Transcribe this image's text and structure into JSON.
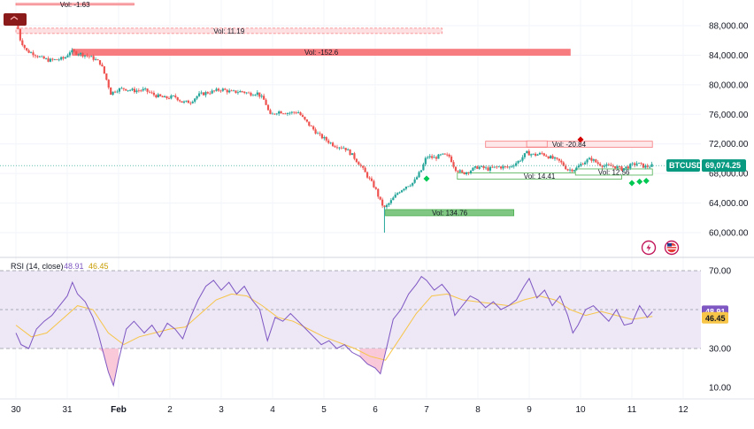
{
  "symbol_badge": "BTCUSD",
  "price_badge": "69,074.25",
  "price_badge_value": 69074.25,
  "colors": {
    "up": "#26a69a",
    "down": "#ef5350",
    "badge": "#089981",
    "rsi_line": "#7e57c2",
    "rsi_ma": "#f7c548",
    "rsi_band": "#ede7f6",
    "vol_neg": "#f77c80",
    "vol_pos": "#4caf50",
    "marker_up": "#00c853",
    "marker_down": "#d50000"
  },
  "price_axis": {
    "ticks": [
      {
        "value": 88000,
        "label": "88,000.00"
      },
      {
        "value": 84000,
        "label": "84,000.00"
      },
      {
        "value": 80000,
        "label": "80,000.00"
      },
      {
        "value": 76000,
        "label": "76,000.00"
      },
      {
        "value": 72000,
        "label": "72,000.00"
      },
      {
        "value": 68000,
        "label": "68,000.00"
      },
      {
        "value": 64000,
        "label": "64,000.00"
      },
      {
        "value": 60000,
        "label": "60,000.00"
      }
    ]
  },
  "rsi_axis": {
    "ticks": [
      {
        "value": 70,
        "label": "70.00"
      },
      {
        "value": 30,
        "label": "30.00"
      },
      {
        "value": 10,
        "label": "10.00"
      }
    ]
  },
  "time_axis": {
    "ticks": [
      {
        "day": 0,
        "label": "30"
      },
      {
        "day": 1,
        "label": "31"
      },
      {
        "day": 2,
        "label": "Feb"
      },
      {
        "day": 3,
        "label": "2"
      },
      {
        "day": 4,
        "label": "3"
      },
      {
        "day": 5,
        "label": "4"
      },
      {
        "day": 6,
        "label": "5"
      },
      {
        "day": 7,
        "label": "6"
      },
      {
        "day": 8,
        "label": "7"
      },
      {
        "day": 9,
        "label": "8"
      },
      {
        "day": 10,
        "label": "9"
      },
      {
        "day": 11,
        "label": "10"
      },
      {
        "day": 12,
        "label": "11"
      },
      {
        "day": 13,
        "label": "12"
      }
    ]
  },
  "rsi_panel": {
    "title": "RSI (14, close)",
    "rsi_value": "48.91",
    "ma_value": "46.45",
    "rsi_value_num": 48.91,
    "ma_value_num": 46.45
  },
  "volume_profile": [
    {
      "label": "Vol: -1.63",
      "price": 90900,
      "day_start": 0.0,
      "day_end": 2.3,
      "type": "neg"
    },
    {
      "label": "Vol: 11.19",
      "price": 87300,
      "day_start": 0.0,
      "day_end": 8.3,
      "type": "neg"
    },
    {
      "label": "Vol: -152.6",
      "price": 84400,
      "day_start": 1.1,
      "day_end": 10.8,
      "type": "neg"
    },
    {
      "label": "Vol: -20.84",
      "price": 71950,
      "day_start": 9.15,
      "day_end": 12.4,
      "type": "neg"
    },
    {
      "label": "Vol: 14.41",
      "price": 67650,
      "day_start": 8.6,
      "day_end": 11.8,
      "type": "pos"
    },
    {
      "label": "Vol: 12.56",
      "price": 68200,
      "day_start": 10.9,
      "day_end": 12.4,
      "type": "pos"
    },
    {
      "label": "Vol: 134.76",
      "price": 62700,
      "day_start": 7.2,
      "day_end": 9.7,
      "type": "pos"
    }
  ],
  "volume_profile_extra": [
    {
      "price": 72000,
      "day_start": 9.95,
      "day_end": 10.35
    }
  ],
  "session_high_marker": {
    "label": "",
    "price": 89000
  },
  "chart_data": [
    {
      "type": "candlestick",
      "title": "BTCUSD",
      "x_unit": "days (0 = Jan 30)",
      "ylim": [
        58500,
        90500
      ],
      "close_path": [
        [
          0.0,
          89000
        ],
        [
          0.08,
          86200
        ],
        [
          0.2,
          84600
        ],
        [
          0.35,
          84200
        ],
        [
          0.5,
          83600
        ],
        [
          0.65,
          83300
        ],
        [
          0.8,
          83400
        ],
        [
          0.95,
          83600
        ],
        [
          1.05,
          84500
        ],
        [
          1.2,
          84300
        ],
        [
          1.35,
          84000
        ],
        [
          1.5,
          83600
        ],
        [
          1.65,
          82900
        ],
        [
          1.75,
          81000
        ],
        [
          1.85,
          78800
        ],
        [
          1.95,
          79300
        ],
        [
          2.1,
          79500
        ],
        [
          2.3,
          79200
        ],
        [
          2.5,
          79300
        ],
        [
          2.7,
          78600
        ],
        [
          2.9,
          78200
        ],
        [
          3.1,
          78400
        ],
        [
          3.25,
          77600
        ],
        [
          3.4,
          77700
        ],
        [
          3.55,
          78600
        ],
        [
          3.7,
          78900
        ],
        [
          3.85,
          79100
        ],
        [
          4.0,
          79400
        ],
        [
          4.2,
          79000
        ],
        [
          4.4,
          79100
        ],
        [
          4.55,
          78800
        ],
        [
          4.7,
          78900
        ],
        [
          4.85,
          77800
        ],
        [
          4.95,
          75800
        ],
        [
          5.1,
          76400
        ],
        [
          5.3,
          76200
        ],
        [
          5.5,
          76300
        ],
        [
          5.6,
          75400
        ],
        [
          5.75,
          74300
        ],
        [
          5.9,
          73200
        ],
        [
          6.05,
          72500
        ],
        [
          6.2,
          71800
        ],
        [
          6.4,
          71500
        ],
        [
          6.55,
          70500
        ],
        [
          6.7,
          69200
        ],
        [
          6.85,
          67600
        ],
        [
          7.0,
          66000
        ],
        [
          7.1,
          64200
        ],
        [
          7.18,
          63300
        ],
        [
          7.3,
          64200
        ],
        [
          7.45,
          65500
        ],
        [
          7.6,
          66300
        ],
        [
          7.75,
          66800
        ],
        [
          7.9,
          68500
        ],
        [
          8.0,
          70300
        ],
        [
          8.15,
          70100
        ],
        [
          8.3,
          70500
        ],
        [
          8.45,
          70300
        ],
        [
          8.55,
          68700
        ],
        [
          8.7,
          68000
        ],
        [
          8.85,
          68400
        ],
        [
          9.0,
          68900
        ],
        [
          9.2,
          68600
        ],
        [
          9.4,
          68900
        ],
        [
          9.6,
          68800
        ],
        [
          9.8,
          69700
        ],
        [
          9.95,
          70800
        ],
        [
          10.1,
          70500
        ],
        [
          10.25,
          70700
        ],
        [
          10.4,
          70200
        ],
        [
          10.6,
          69600
        ],
        [
          10.75,
          68500
        ],
        [
          10.9,
          68600
        ],
        [
          11.05,
          69500
        ],
        [
          11.2,
          70000
        ],
        [
          11.35,
          69300
        ],
        [
          11.5,
          69000
        ],
        [
          11.65,
          69000
        ],
        [
          11.8,
          68600
        ],
        [
          11.95,
          69000
        ],
        [
          12.1,
          69400
        ],
        [
          12.25,
          68900
        ],
        [
          12.4,
          69074
        ]
      ],
      "markers": [
        {
          "day": 8.0,
          "price": 67300,
          "kind": "buy"
        },
        {
          "day": 11.0,
          "price": 72600,
          "kind": "sell"
        },
        {
          "day": 12.0,
          "price": 66700,
          "kind": "buy"
        },
        {
          "day": 12.15,
          "price": 66900,
          "kind": "buy"
        },
        {
          "day": 12.28,
          "price": 67000,
          "kind": "buy"
        }
      ]
    },
    {
      "type": "line",
      "title": "RSI (14, close)",
      "ylim": [
        0,
        75
      ],
      "series": [
        {
          "name": "RSI",
          "points": [
            [
              0.0,
              38
            ],
            [
              0.1,
              32
            ],
            [
              0.25,
              30
            ],
            [
              0.4,
              40
            ],
            [
              0.55,
              44
            ],
            [
              0.7,
              47
            ],
            [
              0.85,
              52
            ],
            [
              1.0,
              57
            ],
            [
              1.1,
              64
            ],
            [
              1.2,
              58
            ],
            [
              1.35,
              54
            ],
            [
              1.5,
              46
            ],
            [
              1.6,
              38
            ],
            [
              1.7,
              28
            ],
            [
              1.8,
              18
            ],
            [
              1.9,
              11
            ],
            [
              2.0,
              24
            ],
            [
              2.15,
              40
            ],
            [
              2.3,
              44
            ],
            [
              2.5,
              38
            ],
            [
              2.65,
              42
            ],
            [
              2.8,
              36
            ],
            [
              2.95,
              43
            ],
            [
              3.1,
              40
            ],
            [
              3.25,
              35
            ],
            [
              3.4,
              46
            ],
            [
              3.55,
              55
            ],
            [
              3.7,
              62
            ],
            [
              3.85,
              65
            ],
            [
              4.0,
              60
            ],
            [
              4.15,
              64
            ],
            [
              4.3,
              58
            ],
            [
              4.45,
              62
            ],
            [
              4.6,
              55
            ],
            [
              4.75,
              50
            ],
            [
              4.9,
              34
            ],
            [
              5.05,
              46
            ],
            [
              5.2,
              44
            ],
            [
              5.35,
              48
            ],
            [
              5.5,
              44
            ],
            [
              5.65,
              40
            ],
            [
              5.8,
              36
            ],
            [
              5.95,
              32
            ],
            [
              6.1,
              34
            ],
            [
              6.25,
              30
            ],
            [
              6.4,
              32
            ],
            [
              6.55,
              28
            ],
            [
              6.7,
              26
            ],
            [
              6.85,
              22
            ],
            [
              7.0,
              20
            ],
            [
              7.1,
              17
            ],
            [
              7.2,
              28
            ],
            [
              7.35,
              45
            ],
            [
              7.5,
              50
            ],
            [
              7.65,
              58
            ],
            [
              7.8,
              63
            ],
            [
              7.9,
              67
            ],
            [
              8.0,
              65
            ],
            [
              8.15,
              60
            ],
            [
              8.3,
              63
            ],
            [
              8.45,
              58
            ],
            [
              8.55,
              47
            ],
            [
              8.7,
              52
            ],
            [
              8.85,
              57
            ],
            [
              9.0,
              55
            ],
            [
              9.15,
              51
            ],
            [
              9.3,
              54
            ],
            [
              9.45,
              50
            ],
            [
              9.6,
              52
            ],
            [
              9.75,
              55
            ],
            [
              9.9,
              62
            ],
            [
              10.0,
              66
            ],
            [
              10.15,
              56
            ],
            [
              10.3,
              60
            ],
            [
              10.45,
              52
            ],
            [
              10.6,
              57
            ],
            [
              10.75,
              47
            ],
            [
              10.85,
              38
            ],
            [
              10.95,
              42
            ],
            [
              11.1,
              50
            ],
            [
              11.25,
              52
            ],
            [
              11.4,
              48
            ],
            [
              11.55,
              44
            ],
            [
              11.7,
              50
            ],
            [
              11.85,
              42
            ],
            [
              12.0,
              43
            ],
            [
              12.15,
              52
            ],
            [
              12.3,
              46
            ],
            [
              12.4,
              48.91
            ]
          ]
        },
        {
          "name": "RSI-based MA",
          "points": [
            [
              0.0,
              42
            ],
            [
              0.3,
              36
            ],
            [
              0.6,
              38
            ],
            [
              0.9,
              45
            ],
            [
              1.2,
              52
            ],
            [
              1.5,
              50
            ],
            [
              1.8,
              38
            ],
            [
              2.1,
              32
            ],
            [
              2.4,
              36
            ],
            [
              2.7,
              38
            ],
            [
              3.0,
              40
            ],
            [
              3.3,
              41
            ],
            [
              3.6,
              48
            ],
            [
              3.9,
              55
            ],
            [
              4.2,
              58
            ],
            [
              4.5,
              57
            ],
            [
              4.8,
              52
            ],
            [
              5.1,
              46
            ],
            [
              5.4,
              44
            ],
            [
              5.7,
              40
            ],
            [
              6.0,
              36
            ],
            [
              6.3,
              33
            ],
            [
              6.6,
              30
            ],
            [
              6.9,
              26
            ],
            [
              7.2,
              24
            ],
            [
              7.5,
              36
            ],
            [
              7.8,
              48
            ],
            [
              8.1,
              57
            ],
            [
              8.4,
              58
            ],
            [
              8.7,
              55
            ],
            [
              9.0,
              54
            ],
            [
              9.3,
              53
            ],
            [
              9.6,
              52
            ],
            [
              9.9,
              55
            ],
            [
              10.2,
              57
            ],
            [
              10.5,
              55
            ],
            [
              10.8,
              50
            ],
            [
              11.1,
              47
            ],
            [
              11.4,
              49
            ],
            [
              11.7,
              47
            ],
            [
              12.0,
              45
            ],
            [
              12.4,
              46.45
            ]
          ]
        }
      ]
    }
  ]
}
